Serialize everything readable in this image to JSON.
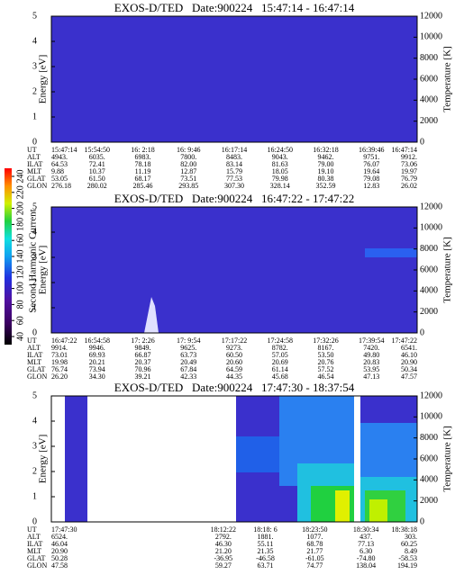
{
  "colorbar": {
    "label": "Second Harmonic Current",
    "ticks": [
      40,
      60,
      80,
      100,
      120,
      140,
      160,
      180,
      200,
      220,
      240
    ]
  },
  "chart_data": [
    {
      "type": "heatmap",
      "title": "EXOS-D/TED   Date:900224   15:47:14 - 16:47:14",
      "ylabel": "Energy [eV]",
      "y2label": "Temperature [K]",
      "ylim": [
        0,
        5
      ],
      "yticks": [
        0,
        1,
        2,
        3,
        4,
        5
      ],
      "y2lim": [
        0,
        12000
      ],
      "y2ticks": [
        0,
        2000,
        4000,
        6000,
        8000,
        10000,
        12000
      ],
      "table": {
        "row_labels": [
          "UT",
          "ALT",
          "ILAT",
          "MLT",
          "GLAT",
          "GLON"
        ],
        "rows": [
          [
            "15:47:14",
            "15:54:50",
            "16: 2:18",
            "16: 9:46",
            "16:17:14",
            "16:24:50",
            "16:32:18",
            "16:39:46",
            "16:47:14"
          ],
          [
            "4943.",
            "6035.",
            "6983.",
            "7800.",
            "8483.",
            "9043.",
            "9462.",
            "9751.",
            "9912."
          ],
          [
            "64.53",
            "72.41",
            "78.18",
            "82.00",
            "83.14",
            "81.63",
            "79.00",
            "76.07",
            "73.06"
          ],
          [
            "9.88",
            "10.37",
            "11.19",
            "12.87",
            "15.79",
            "18.05",
            "19.10",
            "19.64",
            "19.97"
          ],
          [
            "53.05",
            "61.50",
            "68.17",
            "73.51",
            "77.53",
            "79.98",
            "80.38",
            "79.08",
            "76.79"
          ],
          [
            "276.18",
            "280.02",
            "285.46",
            "293.85",
            "307.30",
            "328.14",
            "352.59",
            "12.83",
            "26.02"
          ]
        ]
      }
    },
    {
      "type": "heatmap",
      "title": "EXOS-D/TED   Date:900224   16:47:22 - 17:47:22",
      "ylabel": "Energy [eV]",
      "y2label": "Temperature [K]",
      "ylim": [
        0,
        5
      ],
      "yticks": [
        0,
        1,
        2,
        3,
        4,
        5
      ],
      "y2lim": [
        0,
        12000
      ],
      "y2ticks": [
        0,
        2000,
        4000,
        6000,
        8000,
        10000,
        12000
      ],
      "table": {
        "row_labels": [
          "UT",
          "ALT",
          "ILAT",
          "MLT",
          "GLAT",
          "GLON"
        ],
        "rows": [
          [
            "16:47:22",
            "16:54:58",
            "17: 2:26",
            "17: 9:54",
            "17:17:22",
            "17:24:58",
            "17:32:26",
            "17:39:54",
            "17:47:22"
          ],
          [
            "9914.",
            "9946.",
            "9849.",
            "9625.",
            "9273.",
            "8782.",
            "8167.",
            "7420.",
            "6541."
          ],
          [
            "73.01",
            "69.93",
            "66.87",
            "63.73",
            "60.50",
            "57.05",
            "53.50",
            "49.80",
            "46.10"
          ],
          [
            "19.98",
            "20.21",
            "20.37",
            "20.49",
            "20.60",
            "20.69",
            "20.76",
            "20.83",
            "20.90"
          ],
          [
            "76.74",
            "73.94",
            "70.96",
            "67.84",
            "64.59",
            "61.14",
            "57.52",
            "53.95",
            "50.34"
          ],
          [
            "26.20",
            "34.30",
            "39.21",
            "42.33",
            "44.35",
            "45.68",
            "46.54",
            "47.13",
            "47.57"
          ]
        ]
      }
    },
    {
      "type": "heatmap",
      "title": "EXOS-D/TED   Date:900224   17:47:30 - 18:37:54",
      "ylabel": "Energy [eV]",
      "y2label": "Temperature [K]",
      "ylim": [
        0,
        5
      ],
      "yticks": [
        0,
        1,
        2,
        3,
        4,
        5
      ],
      "y2lim": [
        0,
        12000
      ],
      "y2ticks": [
        0,
        2000,
        4000,
        6000,
        8000,
        10000,
        12000
      ],
      "table": {
        "row_labels": [
          "UT",
          "ALT",
          "ILAT",
          "MLT",
          "GLAT",
          "GLON"
        ],
        "rows": [
          [
            "17:47:30",
            "18:12:22",
            "18:18: 6",
            "18:23:50",
            "18:30:34",
            "18:38:18"
          ],
          [
            "6524.",
            "2792.",
            "1881.",
            "1077.",
            "437.",
            "303."
          ],
          [
            "46.04",
            "46.30",
            "55.11",
            "68.78",
            "77.13",
            "60.25"
          ],
          [
            "20.90",
            "21.20",
            "21.35",
            "21.77",
            "6.30",
            "8.49"
          ],
          [
            "50.28",
            "-36.95",
            "-46.58",
            "-61.05",
            "-74.80",
            "-58.53"
          ],
          [
            "47.58",
            "59.27",
            "63.71",
            "74.77",
            "138.04",
            "194.19"
          ]
        ]
      }
    }
  ]
}
